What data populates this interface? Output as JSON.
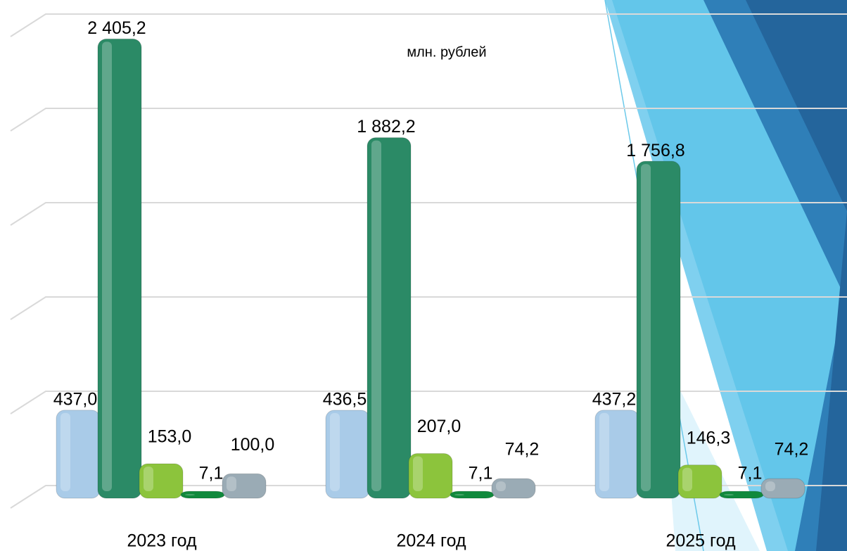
{
  "chart_data": {
    "type": "bar3d",
    "subtitle": "млн. рублей",
    "categories": [
      "2023 год",
      "2024 год",
      "2025 год"
    ],
    "series": [
      {
        "color": "#a9cbe8",
        "values": [
          437.0,
          436.5,
          437.2
        ],
        "value_labels": [
          "437,0",
          "436,5",
          "437,2"
        ]
      },
      {
        "color": "#2b8a66",
        "values": [
          2405.2,
          1882.2,
          1756.8
        ],
        "value_labels": [
          "2 405,2",
          "1 882,2",
          "1 756,8"
        ]
      },
      {
        "color": "#8cc43c",
        "values": [
          153.0,
          207.0,
          146.3
        ],
        "value_labels": [
          "153,0",
          "207,0",
          "146,3"
        ]
      },
      {
        "color": "#10893c",
        "values": [
          7.1,
          7.1,
          7.1
        ],
        "value_labels": [
          "7,1",
          "7,1",
          "7,1"
        ]
      },
      {
        "color": "#9aabb5",
        "values": [
          100.0,
          74.2,
          74.2
        ],
        "value_labels": [
          "100,0",
          "74,2",
          "74,2"
        ]
      }
    ],
    "ylim": [
      0,
      2500
    ],
    "yticks": [
      0,
      500,
      1000,
      1500,
      2000,
      2500
    ],
    "grid": true
  }
}
